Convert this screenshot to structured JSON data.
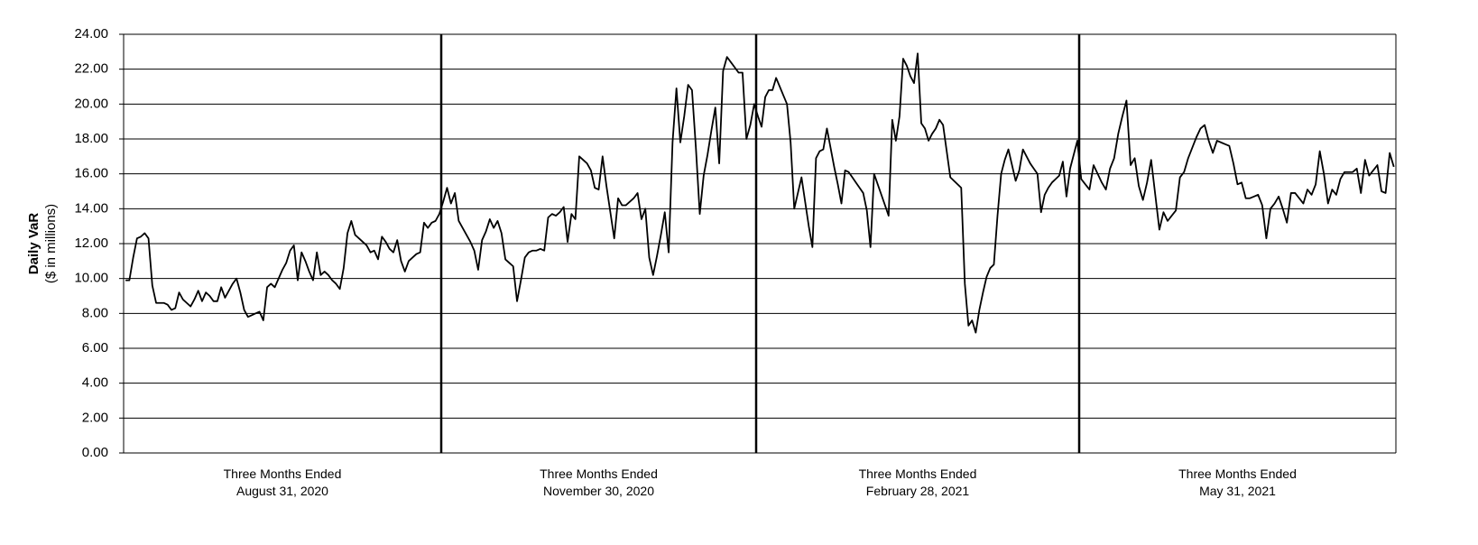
{
  "chart_data": {
    "type": "line",
    "y_label": [
      "Daily VaR",
      "($ in millions)"
    ],
    "color": "#000000",
    "grid": true,
    "ylim": [
      0,
      24
    ],
    "yticks": [
      {
        "value": 0,
        "label": "0.00"
      },
      {
        "value": 2,
        "label": "2.00"
      },
      {
        "value": 4,
        "label": "4.00"
      },
      {
        "value": 6,
        "label": "6.00"
      },
      {
        "value": 8,
        "label": "8.00"
      },
      {
        "value": 10,
        "label": "10.00"
      },
      {
        "value": 12,
        "label": "12.00"
      },
      {
        "value": 14,
        "label": "14.00"
      },
      {
        "value": 16,
        "label": "16.00"
      },
      {
        "value": 18,
        "label": "18.00"
      },
      {
        "value": 20,
        "label": "20.00"
      },
      {
        "value": 22,
        "label": "22.00"
      },
      {
        "value": 24,
        "label": "24.00"
      }
    ],
    "groups": [
      {
        "label": [
          "Three Months Ended",
          "August 31, 2020"
        ],
        "values": [
          9.9,
          9.9,
          11.2,
          12.3,
          12.4,
          12.6,
          12.3,
          9.6,
          8.6,
          8.6,
          8.6,
          8.5,
          8.2,
          8.3,
          9.2,
          8.8,
          8.6,
          8.4,
          8.8,
          9.3,
          8.7,
          9.2,
          9.0,
          8.7,
          8.7,
          9.5,
          8.9,
          9.3,
          9.7,
          10.0,
          9.2,
          8.2,
          7.8,
          7.9,
          8.0,
          8.1,
          7.6,
          9.5,
          9.7,
          9.5,
          10.0,
          10.5,
          10.9,
          11.6,
          11.9,
          9.9,
          11.5,
          11.0,
          10.4,
          9.9,
          11.5,
          10.2,
          10.4,
          10.2,
          9.9,
          9.7,
          9.4,
          10.6,
          12.6,
          13.3,
          12.5,
          12.3,
          12.1,
          11.9,
          11.5,
          11.6,
          11.1,
          12.4,
          12.1,
          11.7,
          11.5,
          12.2,
          11.0,
          10.4,
          11.0,
          11.2,
          11.4,
          11.5,
          13.2,
          12.9,
          13.2,
          13.3,
          13.7
        ]
      },
      {
        "label": [
          "Three Months Ended",
          "November  30, 2020"
        ],
        "values": [
          14.4,
          15.2,
          14.3,
          14.9,
          13.3,
          12.9,
          12.5,
          12.1,
          11.6,
          10.5,
          12.2,
          12.7,
          13.4,
          12.9,
          13.3,
          12.6,
          11.1,
          10.9,
          10.7,
          8.7,
          9.9,
          11.2,
          11.5,
          11.6,
          11.6,
          11.7,
          11.6,
          13.5,
          13.7,
          13.6,
          13.8,
          14.1,
          12.1,
          13.7,
          13.4,
          17.0,
          16.8,
          16.6,
          16.2,
          15.2,
          15.1,
          17.0,
          15.3,
          13.8,
          12.3,
          14.6,
          14.2,
          14.2,
          14.4,
          14.6,
          14.9,
          13.4,
          14.0,
          11.2,
          10.2,
          11.3,
          12.5,
          13.8,
          11.5,
          17.8,
          20.9,
          17.8,
          19.3,
          21.1,
          20.8,
          17.5,
          13.7,
          15.9,
          17.1,
          18.5,
          19.8,
          16.6,
          21.9,
          22.7,
          22.4,
          22.1,
          21.8,
          21.8,
          18.0,
          18.8,
          20.0
        ]
      },
      {
        "label": [
          "Three Months Ended",
          "February 28, 2021"
        ],
        "values": [
          19.3,
          18.7,
          20.4,
          20.8,
          20.8,
          21.5,
          21.0,
          20.5,
          20.0,
          17.8,
          14.0,
          14.9,
          15.8,
          14.4,
          13.0,
          11.8,
          16.9,
          17.3,
          17.4,
          18.6,
          17.5,
          16.4,
          15.4,
          14.3,
          16.2,
          16.1,
          15.8,
          15.5,
          15.2,
          14.9,
          13.9,
          11.8,
          16.0,
          15.4,
          14.8,
          14.2,
          13.6,
          19.1,
          17.9,
          19.3,
          22.6,
          22.2,
          21.6,
          21.2,
          22.9,
          18.9,
          18.6,
          17.9,
          18.3,
          18.6,
          19.1,
          18.8,
          17.3,
          15.8,
          15.6,
          15.4,
          15.2,
          9.7,
          7.3,
          7.6,
          6.9,
          8.2,
          9.2,
          10.1,
          10.6,
          10.8,
          13.6,
          16.0,
          16.8,
          17.4,
          16.5,
          15.6,
          16.2,
          17.4,
          17.0,
          16.6,
          16.3,
          16.0,
          13.8,
          14.8,
          15.2,
          15.5,
          15.7,
          15.9,
          16.7,
          14.7,
          16.3,
          17.1,
          17.9
        ]
      },
      {
        "label": [
          "Three Months Ended",
          "May 31, 2021"
        ],
        "values": [
          15.7,
          15.4,
          15.1,
          16.5,
          16.0,
          15.5,
          15.1,
          16.3,
          16.9,
          18.3,
          19.3,
          20.2,
          16.5,
          16.9,
          15.3,
          14.5,
          15.5,
          16.8,
          14.8,
          12.8,
          13.8,
          13.3,
          13.6,
          13.9,
          15.8,
          16.1,
          16.9,
          17.5,
          18.1,
          18.6,
          18.8,
          17.9,
          17.2,
          17.9,
          17.8,
          17.7,
          17.6,
          16.6,
          15.4,
          15.5,
          14.6,
          14.6,
          14.7,
          14.8,
          14.2,
          12.3,
          14.0,
          14.3,
          14.7,
          14.0,
          13.2,
          14.9,
          14.9,
          14.6,
          14.3,
          15.1,
          14.8,
          15.4,
          17.3,
          16.0,
          14.3,
          15.1,
          14.8,
          15.7,
          16.1,
          16.1,
          16.1,
          16.3,
          14.9,
          16.8,
          15.9,
          16.2,
          16.5,
          15.0,
          14.9,
          17.2,
          16.4
        ]
      }
    ]
  }
}
